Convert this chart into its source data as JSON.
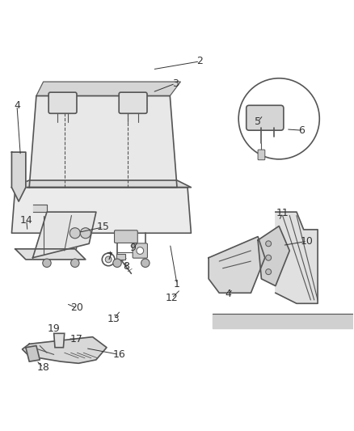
{
  "background_color": "#ffffff",
  "line_color": "#555555",
  "label_color": "#333333",
  "font_size": 9,
  "fig_width": 4.38,
  "fig_height": 5.33,
  "dpi": 100
}
